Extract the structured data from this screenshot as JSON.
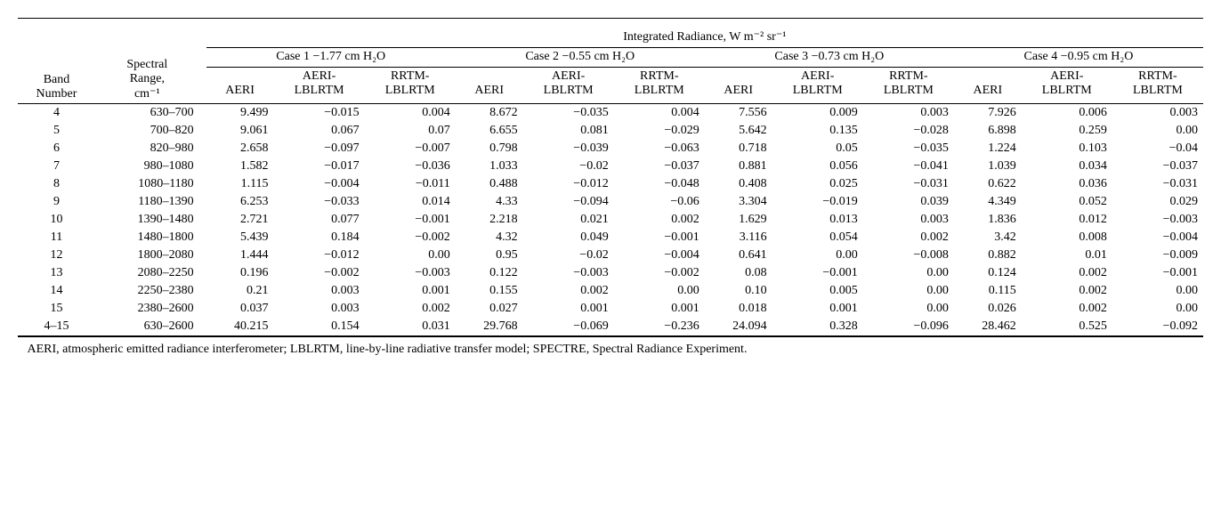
{
  "header": {
    "super": "Integrated Radiance, W m⁻² sr⁻¹",
    "cases": [
      "Case 1 −1.77 cm H₂O",
      "Case 2 −0.55 cm H₂O",
      "Case 3 −0.73 cm H₂O",
      "Case 4 −0.95 cm H₂O"
    ],
    "band_label": "Band Number",
    "range_label_top": "Spectral",
    "range_label_mid": "Range,",
    "range_label_bot": "cm⁻¹",
    "sub_cols": [
      "AERI",
      "AERI-LBLRTM",
      "RRTM-LBLRTM"
    ]
  },
  "rows": [
    {
      "band": "4",
      "range": "630–700",
      "c": [
        "9.499",
        "−0.015",
        "0.004",
        "8.672",
        "−0.035",
        "0.004",
        "7.556",
        "0.009",
        "0.003",
        "7.926",
        "0.006",
        "0.003"
      ]
    },
    {
      "band": "5",
      "range": "700–820",
      "c": [
        "9.061",
        "0.067",
        "0.07",
        "6.655",
        "0.081",
        "−0.029",
        "5.642",
        "0.135",
        "−0.028",
        "6.898",
        "0.259",
        "0.00"
      ]
    },
    {
      "band": "6",
      "range": "820–980",
      "c": [
        "2.658",
        "−0.097",
        "−0.007",
        "0.798",
        "−0.039",
        "−0.063",
        "0.718",
        "0.05",
        "−0.035",
        "1.224",
        "0.103",
        "−0.04"
      ]
    },
    {
      "band": "7",
      "range": "980–1080",
      "c": [
        "1.582",
        "−0.017",
        "−0.036",
        "1.033",
        "−0.02",
        "−0.037",
        "0.881",
        "0.056",
        "−0.041",
        "1.039",
        "0.034",
        "−0.037"
      ]
    },
    {
      "band": "8",
      "range": "1080–1180",
      "c": [
        "1.115",
        "−0.004",
        "−0.011",
        "0.488",
        "−0.012",
        "−0.048",
        "0.408",
        "0.025",
        "−0.031",
        "0.622",
        "0.036",
        "−0.031"
      ]
    },
    {
      "band": "9",
      "range": "1180–1390",
      "c": [
        "6.253",
        "−0.033",
        "0.014",
        "4.33",
        "−0.094",
        "−0.06",
        "3.304",
        "−0.019",
        "0.039",
        "4.349",
        "0.052",
        "0.029"
      ]
    },
    {
      "band": "10",
      "range": "1390–1480",
      "c": [
        "2.721",
        "0.077",
        "−0.001",
        "2.218",
        "0.021",
        "0.002",
        "1.629",
        "0.013",
        "0.003",
        "1.836",
        "0.012",
        "−0.003"
      ]
    },
    {
      "band": "11",
      "range": "1480–1800",
      "c": [
        "5.439",
        "0.184",
        "−0.002",
        "4.32",
        "0.049",
        "−0.001",
        "3.116",
        "0.054",
        "0.002",
        "3.42",
        "0.008",
        "−0.004"
      ]
    },
    {
      "band": "12",
      "range": "1800–2080",
      "c": [
        "1.444",
        "−0.012",
        "0.00",
        "0.95",
        "−0.02",
        "−0.004",
        "0.641",
        "0.00",
        "−0.008",
        "0.882",
        "0.01",
        "−0.009"
      ]
    },
    {
      "band": "13",
      "range": "2080–2250",
      "c": [
        "0.196",
        "−0.002",
        "−0.003",
        "0.122",
        "−0.003",
        "−0.002",
        "0.08",
        "−0.001",
        "0.00",
        "0.124",
        "0.002",
        "−0.001"
      ]
    },
    {
      "band": "14",
      "range": "2250–2380",
      "c": [
        "0.21",
        "0.003",
        "0.001",
        "0.155",
        "0.002",
        "0.00",
        "0.10",
        "0.005",
        "0.00",
        "0.115",
        "0.002",
        "0.00"
      ]
    },
    {
      "band": "15",
      "range": "2380–2600",
      "c": [
        "0.037",
        "0.003",
        "0.002",
        "0.027",
        "0.001",
        "0.001",
        "0.018",
        "0.001",
        "0.00",
        "0.026",
        "0.002",
        "0.00"
      ]
    },
    {
      "band": "4–15",
      "range": "630–2600",
      "c": [
        "40.215",
        "0.154",
        "0.031",
        "29.768",
        "−0.069",
        "−0.236",
        "24.094",
        "0.328",
        "−0.096",
        "28.462",
        "0.525",
        "−0.092"
      ]
    }
  ],
  "footnote": "AERI, atmospheric emitted radiance interferometer; LBLRTM, line-by-line radiative transfer model; SPECTRE, Spectral Radiance Experiment."
}
